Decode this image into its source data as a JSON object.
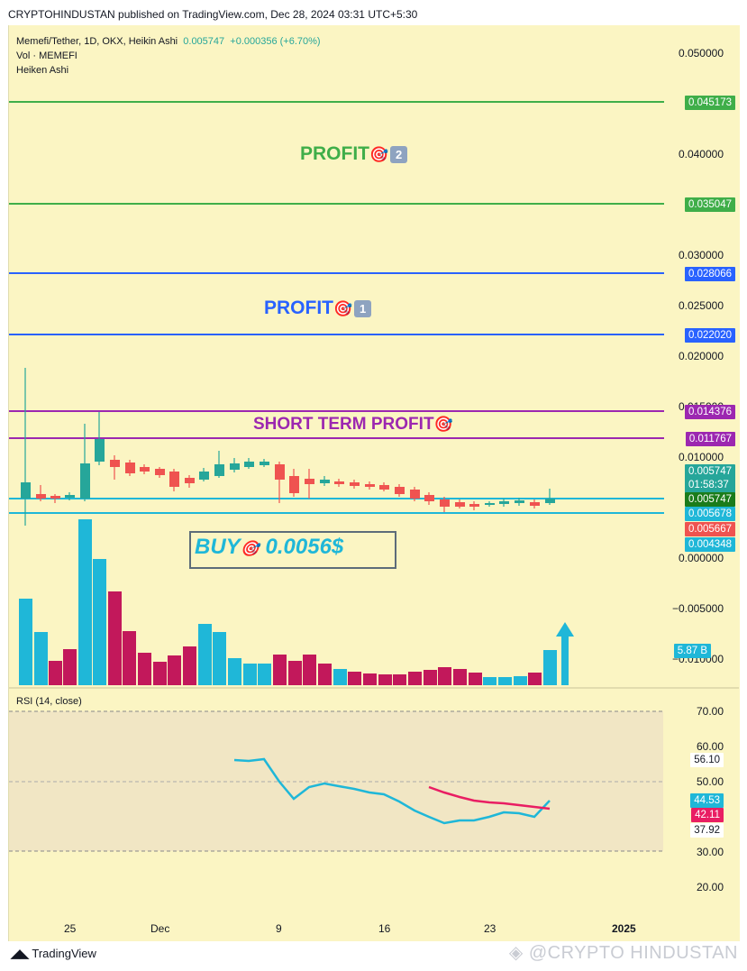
{
  "header": {
    "publisher": "CRYPTOHINDUSTAN published on TradingView.com, Dec 28, 2024 03:31 UTC+5:30"
  },
  "legend": {
    "symbol": "Memefi/Tether, 1D, OKX, Heikin Ashi",
    "price": "0.005747",
    "change": "+0.000356 (+6.70%)",
    "vol": "Vol · MEMEFI",
    "ha": "Heiken Ashi"
  },
  "price_axis": {
    "ticks": [
      "0.050000",
      "0.040000",
      "0.030000",
      "0.025000",
      "0.020000",
      "0.015000",
      "0.010000",
      "0.000000",
      "−0.005000",
      "−0.010000"
    ]
  },
  "price_tags": {
    "t1": "0.045173",
    "t2": "0.035047",
    "t3": "0.028066",
    "t4": "0.022020",
    "t5": "0.014376",
    "t6": "0.011767",
    "t7": "0.005747",
    "t7b": "01:58:37",
    "t8": "0.005747",
    "t9": "0.005678",
    "t10": "0.005667",
    "t11": "0.004348",
    "vol": "5.87 B"
  },
  "annotations": {
    "profit2": "PROFIT",
    "profit2_num": "2",
    "profit1": "PROFIT",
    "profit1_num": "1",
    "short_term": "SHORT TERM PROFIT",
    "buy": "BUY",
    "buy_price": "0.0056$"
  },
  "rsi": {
    "title": "RSI (14, close)",
    "ticks": [
      "70.00",
      "60.00",
      "50.00",
      "30.00",
      "20.00"
    ],
    "tags": {
      "a": "56.10",
      "b": "44.53",
      "c": "42.11",
      "d": "37.92"
    }
  },
  "x_axis": {
    "labels": [
      "25",
      "Dec",
      "9",
      "16",
      "23",
      "2025"
    ]
  },
  "footer": {
    "brand": "TradingView",
    "watermark": "@CRYPTO HINDUSTAN"
  },
  "colors": {
    "background": "#fbf5c3",
    "green_line": "#3fae49",
    "blue_line": "#2962ff",
    "purple_line": "#9c27b0",
    "cyan_line": "#1fb7d8",
    "up": "#26a69a",
    "down": "#ef5350",
    "vol_up": "#1fb7d8",
    "vol_down": "#c2185b"
  }
}
